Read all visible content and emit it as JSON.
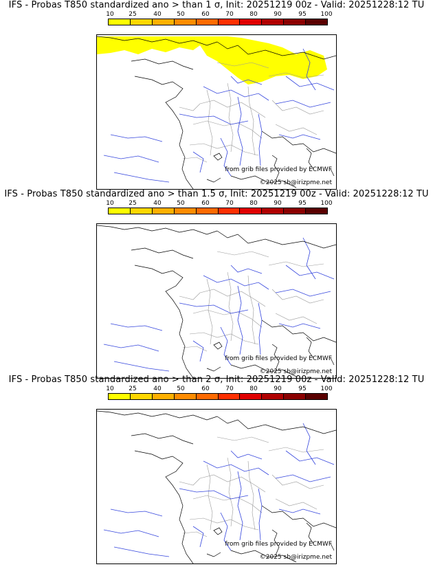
{
  "panels": [
    {
      "title": "IFS - Probas T850  standardized ano > than 1 σ, Init: 20251219 00z - Valid: 20251228:12 TU",
      "threshold_sigma": 1,
      "has_probability_area": true,
      "probability_area_color": "#ffff00",
      "source": "from grib files provided by ECMWF",
      "copyright": "©2025 sb@irizpme.net"
    },
    {
      "title": "IFS - Probas T850  standardized ano > than 1.5 σ, Init: 20251219 00z - Valid: 20251228:12 TU",
      "threshold_sigma": 1.5,
      "has_probability_area": false,
      "source": "from grib files provided by ECMWF",
      "copyright": "©2025 sb@irizpme.net"
    },
    {
      "title": "IFS - Probas T850  standardized ano > than 2 σ, Init: 20251219 00z - Valid: 20251228:12 TU",
      "threshold_sigma": 2,
      "has_probability_area": false,
      "source": "from grib files provided by ECMWF",
      "copyright": "©2025 sb@irizpme.net"
    }
  ],
  "scale": {
    "labels": [
      "10",
      "25",
      "40",
      "50",
      "60",
      "70",
      "80",
      "90",
      "95",
      "100"
    ],
    "colors": [
      "#ffff00",
      "#ffd700",
      "#ffb000",
      "#ff8c00",
      "#ff6a00",
      "#ff3000",
      "#e00000",
      "#b00000",
      "#8b0000",
      "#5a0000"
    ]
  },
  "map_colors": {
    "coast": "#000000",
    "rivers": "#3344dd",
    "borders": "#999999"
  }
}
